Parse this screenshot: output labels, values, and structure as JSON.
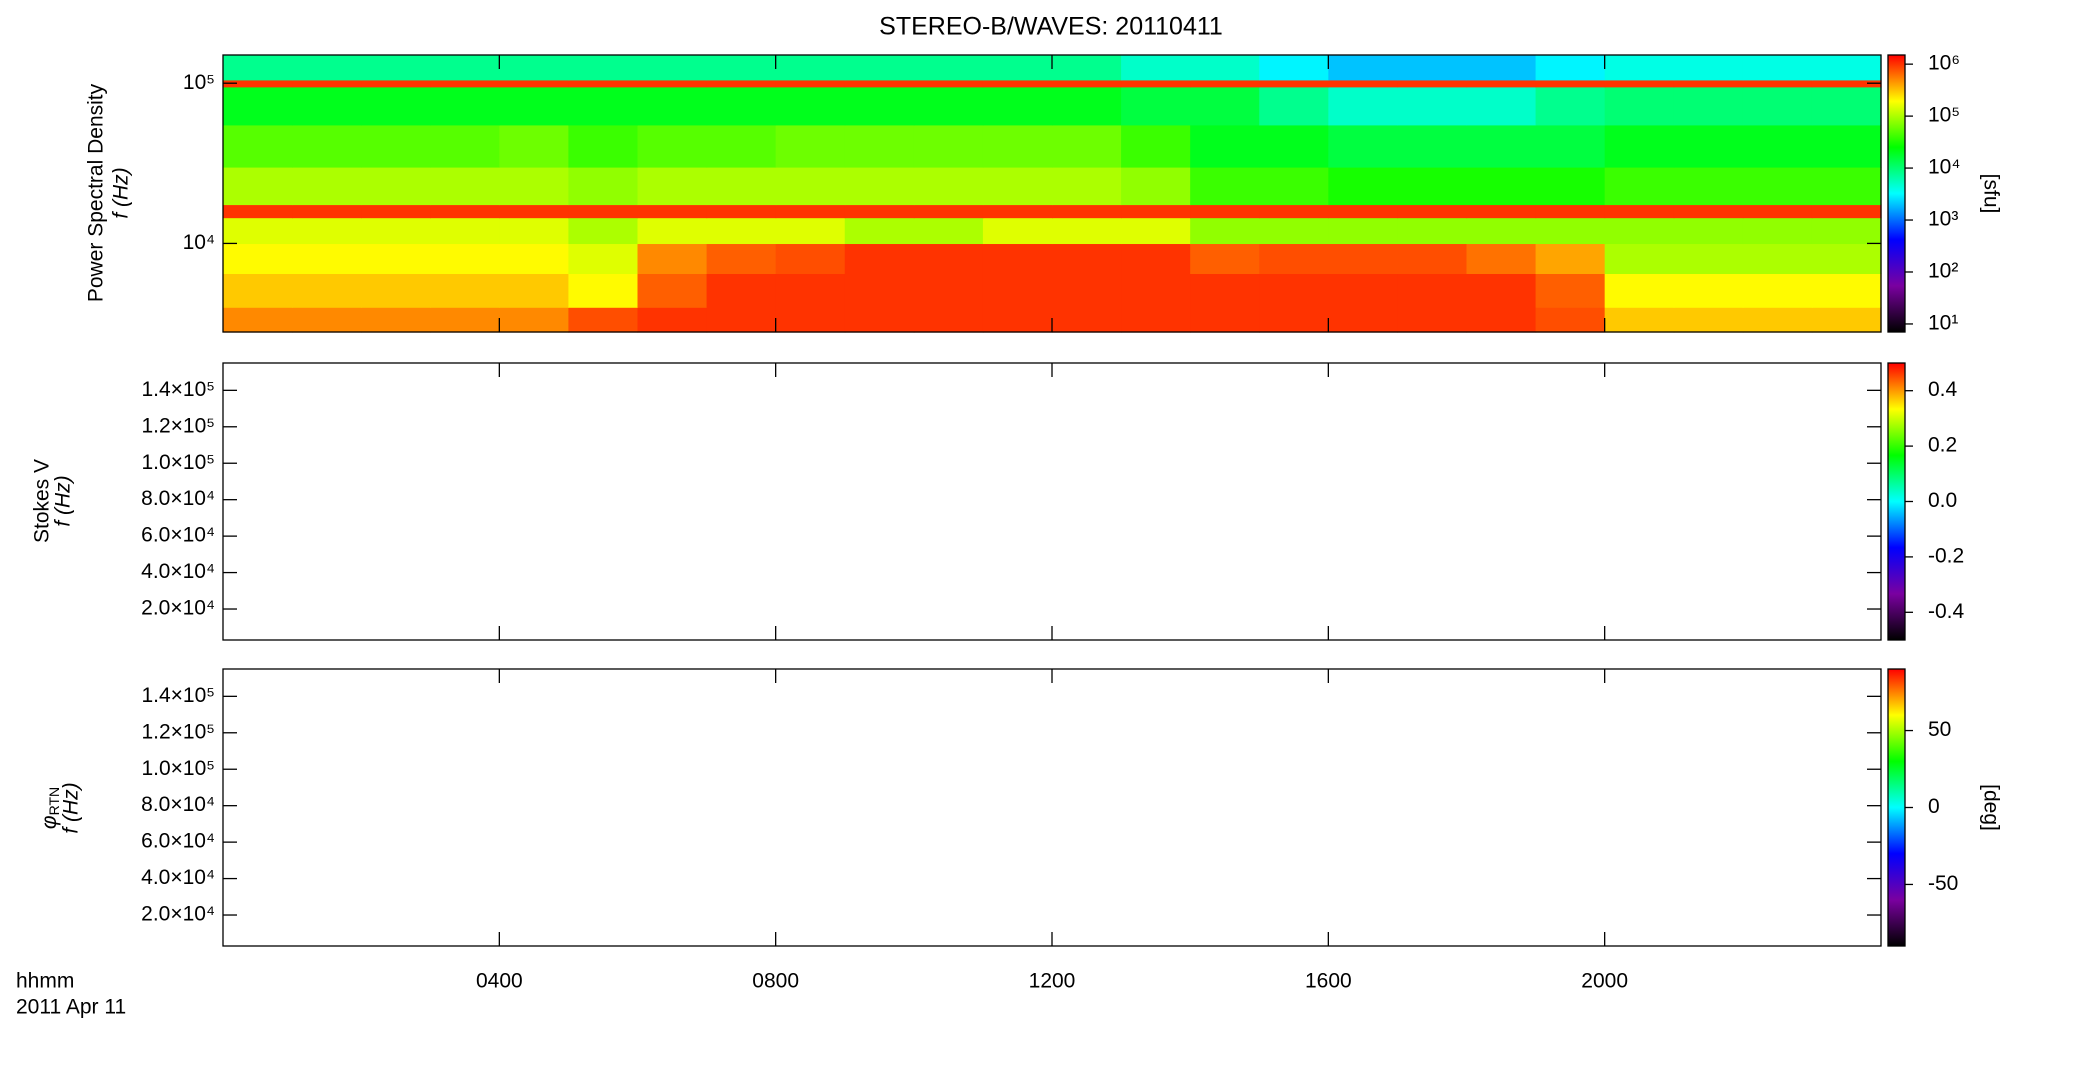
{
  "chart_data": [
    {
      "type": "heatmap",
      "title": "STEREO-B/WAVES: 20110411",
      "ylabel": [
        "Power Spectral Density",
        "f (Hz)"
      ],
      "ylog": true,
      "ylim": [
        2800,
        150000
      ],
      "yticks": [
        {
          "value": 10000,
          "label": "10⁴"
        },
        {
          "value": 100000,
          "label": "10⁵"
        }
      ],
      "xlim": [
        0,
        24
      ],
      "xbins": [
        0,
        1,
        2,
        3,
        4,
        5,
        6,
        7,
        8,
        9,
        10,
        11,
        12,
        13,
        14,
        15,
        16,
        17,
        18,
        19,
        20,
        21,
        22,
        23,
        24
      ],
      "ybins": [
        2800,
        4000,
        6500,
        10000,
        14500,
        17500,
        30000,
        55000,
        95000,
        105000,
        150000
      ],
      "z": [
        [
          500000,
          500000,
          500000,
          500000,
          500000,
          800000,
          1000000,
          1000000,
          1000000,
          1000000,
          1000000,
          1000000,
          1000000,
          1000000,
          1000000,
          1000000,
          1000000,
          1000000,
          1000000,
          800000,
          300000,
          300000,
          300000,
          300000
        ],
        [
          300000,
          300000,
          300000,
          300000,
          300000,
          200000,
          700000,
          1000000,
          1000000,
          1000000,
          1000000,
          1000000,
          1000000,
          1000000,
          1000000,
          1000000,
          1000000,
          1000000,
          1000000,
          700000,
          200000,
          200000,
          200000,
          200000
        ],
        [
          200000,
          200000,
          200000,
          200000,
          200000,
          150000,
          500000,
          700000,
          800000,
          1000000,
          1000000,
          1000000,
          1000000,
          1000000,
          700000,
          800000,
          800000,
          800000,
          600000,
          400000,
          100000,
          100000,
          100000,
          100000
        ],
        [
          150000,
          150000,
          150000,
          150000,
          150000,
          100000,
          150000,
          150000,
          150000,
          100000,
          100000,
          150000,
          150000,
          150000,
          80000,
          80000,
          80000,
          80000,
          80000,
          80000,
          80000,
          80000,
          80000,
          80000
        ],
        [
          1000000,
          1000000,
          1000000,
          1000000,
          1000000,
          1000000,
          1000000,
          1000000,
          1000000,
          1000000,
          1000000,
          1000000,
          1000000,
          1000000,
          1000000,
          1000000,
          1000000,
          1000000,
          1000000,
          1000000,
          1000000,
          1000000,
          1000000,
          1000000
        ],
        [
          100000,
          100000,
          100000,
          100000,
          100000,
          80000,
          100000,
          100000,
          100000,
          100000,
          100000,
          100000,
          100000,
          80000,
          40000,
          40000,
          30000,
          30000,
          30000,
          30000,
          40000,
          40000,
          40000,
          40000
        ],
        [
          50000,
          50000,
          50000,
          50000,
          60000,
          40000,
          50000,
          50000,
          60000,
          60000,
          60000,
          60000,
          60000,
          40000,
          20000,
          20000,
          15000,
          15000,
          15000,
          15000,
          20000,
          20000,
          20000,
          20000
        ],
        [
          20000,
          20000,
          20000,
          20000,
          20000,
          20000,
          20000,
          20000,
          20000,
          20000,
          20000,
          20000,
          20000,
          15000,
          15000,
          8000,
          5000,
          5000,
          5000,
          8000,
          10000,
          10000,
          10000,
          10000
        ],
        [
          1000000,
          1000000,
          1000000,
          1000000,
          1000000,
          1000000,
          1000000,
          1000000,
          1000000,
          1000000,
          1000000,
          1000000,
          1000000,
          1000000,
          1000000,
          1000000,
          1000000,
          1000000,
          1000000,
          1000000,
          1000000,
          1000000,
          1000000,
          1000000
        ],
        [
          8000,
          8000,
          8000,
          8000,
          8000,
          8000,
          8000,
          8000,
          8000,
          8000,
          8000,
          8000,
          8000,
          5000,
          5000,
          3000,
          2000,
          2000,
          2000,
          3000,
          4000,
          4000,
          4000,
          4000
        ]
      ],
      "zlog": true,
      "zlim": [
        7,
        1500000
      ],
      "zticks": [
        {
          "value": 10,
          "label": "10¹"
        },
        {
          "value": 100,
          "label": "10²"
        },
        {
          "value": 1000,
          "label": "10³"
        },
        {
          "value": 10000,
          "label": "10⁴"
        },
        {
          "value": 100000,
          "label": "10⁵"
        },
        {
          "value": 1000000,
          "label": "10⁶"
        }
      ],
      "zlabel": "[sfu]",
      "colormap": [
        "#000000",
        "#7a00a0",
        "#0000ff",
        "#00ffff",
        "#00ff00",
        "#ffff00",
        "#ff0000"
      ]
    },
    {
      "type": "heatmap",
      "ylabel": [
        "Stokes V",
        "f (Hz)"
      ],
      "ylim": [
        3000,
        155000
      ],
      "yticks": [
        {
          "value": 20000,
          "label": "2.0×10⁴"
        },
        {
          "value": 40000,
          "label": "4.0×10⁴"
        },
        {
          "value": 60000,
          "label": "6.0×10⁴"
        },
        {
          "value": 80000,
          "label": "8.0×10⁴"
        },
        {
          "value": 100000,
          "label": "1.0×10⁵"
        },
        {
          "value": 120000,
          "label": "1.2×10⁵"
        },
        {
          "value": 140000,
          "label": "1.4×10⁵"
        }
      ],
      "xlim": [
        0,
        24
      ],
      "zlim": [
        -0.5,
        0.5
      ],
      "zticks": [
        -0.4,
        -0.2,
        {
          "value": 0,
          "label": "0.0"
        },
        0.2,
        0.4
      ],
      "colormap": [
        "#000000",
        "#7a00a0",
        "#0000ff",
        "#00ffff",
        "#00ff00",
        "#ffff00",
        "#ff0000"
      ]
    },
    {
      "type": "heatmap",
      "ylabel": [
        "φ",
        "RTN",
        "f (Hz)"
      ],
      "ylim": [
        3000,
        155000
      ],
      "yticks": [
        {
          "value": 20000,
          "label": "2.0×10⁴"
        },
        {
          "value": 40000,
          "label": "4.0×10⁴"
        },
        {
          "value": 60000,
          "label": "6.0×10⁴"
        },
        {
          "value": 80000,
          "label": "8.0×10⁴"
        },
        {
          "value": 100000,
          "label": "1.0×10⁵"
        },
        {
          "value": 120000,
          "label": "1.2×10⁵"
        },
        {
          "value": 140000,
          "label": "1.4×10⁵"
        }
      ],
      "xlim": [
        0,
        24
      ],
      "xticks": [
        {
          "value": 4,
          "label": "0400"
        },
        {
          "value": 8,
          "label": "0800"
        },
        {
          "value": 12,
          "label": "1200"
        },
        {
          "value": 16,
          "label": "1600"
        },
        {
          "value": 20,
          "label": "2000"
        }
      ],
      "xlabel": [
        "hhmm",
        "2011 Apr 11"
      ],
      "zlim": [
        -90,
        90
      ],
      "zticks": [
        -50,
        0,
        50
      ],
      "zlabel": "[deg]",
      "colormap": [
        "#000000",
        "#7a00a0",
        "#0000ff",
        "#00ffff",
        "#00ff00",
        "#ffff00",
        "#ff0000"
      ]
    }
  ]
}
